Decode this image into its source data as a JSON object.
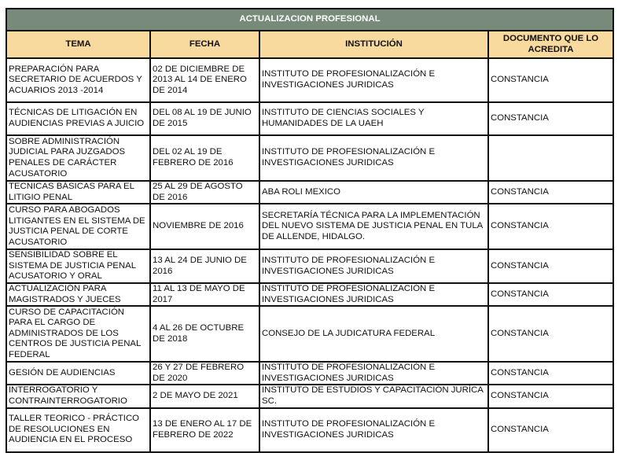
{
  "title": "ACTUALIZACION PROFESIONAL",
  "colors": {
    "title_bg": "#788b7a",
    "header_bg": "#f8d99e"
  },
  "headers": [
    "TEMA",
    "FECHA",
    "INSTITUCIÓN",
    "DOCUMENTO QUE LO ACREDITA"
  ],
  "rows": [
    [
      "PREPARACIÓN PARA SECRETARIO DE ACUERDOS Y ACUARIOS 2013 -2014",
      "02 DE DICIEMBRE DE 2013 AL 14 DE ENERO DE 2014",
      "INSTITUTO DE PROFESIONALIZACIÓN E INVESTIGACIONES JURIDICAS",
      "CONSTANCIA"
    ],
    [
      "TÉCNICAS DE LITIGACIÓN EN AUDIENCIAS PREVIAS A JUICIO",
      "DEL 08 AL 19 DE JUNIO DE 2015",
      "INSTITUTO DE CIENCIAS SOCIALES Y HUMANIDADES DE LA UAEH",
      "CONSTANCIA"
    ],
    [
      "SOBRE ADMINISTRACIÓN JUDICIAL PARA JUZGADOS PENALES DE CARÁCTER ACUSATORIO",
      "DEL 02 AL 19 DE FEBRERO DE 2016",
      "INSTITUTO DE PROFESIONALIZACIÓN E INVESTIGACIONES JURIDICAS",
      ""
    ],
    [
      "TECNICAS BÁSICAS PARA EL LITIGIO PENAL",
      "25 AL 29 DE AGOSTO DE 2016",
      "ABA ROLI MEXICO",
      "CONSTANCIA"
    ],
    [
      "CURSO PARA ABOGADOS LITIGANTES EN EL SISTEMA DE JUSTICIA PENAL DE CORTE ACUSATORIO",
      "NOVIEMBRE DE 2016",
      "SECRETARÍA TÉCNICA PARA LA IMPLEMENTACIÓN DEL NUEVO SISTEMA DE JUSTICIA PENAL EN TULA DE ALLENDE, HIDALGO.",
      "CONSTANCIA"
    ],
    [
      "SENSIBILIDAD SOBRE EL SISTEMA DE JUSTICIA PENAL ACUSATORIO Y ORAL",
      "13 AL 24 DE JUNIO DE 2016",
      "INSTITUTO DE PROFESIONALIZACIÓN E INVESTIGACIONES JURIDICAS",
      "CONSTANCIA"
    ],
    [
      "ACTUALIZACIÓN PARA MAGISTRADOS Y JUECES",
      "11 AL 13 DE MAYO DE 2017",
      "INSTITUTO DE PROFESIONALIZACIÓN E INVESTIGACIONES JURIDICAS",
      "CONSTANCIA"
    ],
    [
      "CURSO DE CAPACITACIÓN PARA EL CARGO DE ADMINISTRADOS DE LOS CENTROS DE JUSTICIA PENAL FEDERAL",
      "4 AL 26 DE OCTUBRE DE 2018",
      "CONSEJO DE LA JUDICATURA FEDERAL",
      "CONSTANCIA"
    ],
    [
      "GESIÓN DE AUDIENCIAS",
      "26 Y 27 DE FEBRERO DE 2020",
      "INSTITUTO DE PROFESIONALIZACIÓN E INVESTIGACIONES JURIDICAS",
      "CONSTANCIA"
    ],
    [
      "INTERROGATORIO Y CONTRAINTERROGATORIO",
      "2 DE MAYO DE 2021",
      "INSTITUTO DE ESTUDIOS Y CAPACITACIÓN JURÍCA SC.",
      "CONSTANCIA"
    ],
    [
      "TALLER TEORICO - PRÁCTICO DE RESOLUCIONES EN AUDIENCIA EN EL PROCESO",
      "13 DE ENERO AL 17 DE FEBRERO DE 2022",
      "INSTITUTO DE PROFESIONALIZACIÓN E INVESTIGACIONES JURIDICAS",
      "CONSTANCIA"
    ]
  ]
}
